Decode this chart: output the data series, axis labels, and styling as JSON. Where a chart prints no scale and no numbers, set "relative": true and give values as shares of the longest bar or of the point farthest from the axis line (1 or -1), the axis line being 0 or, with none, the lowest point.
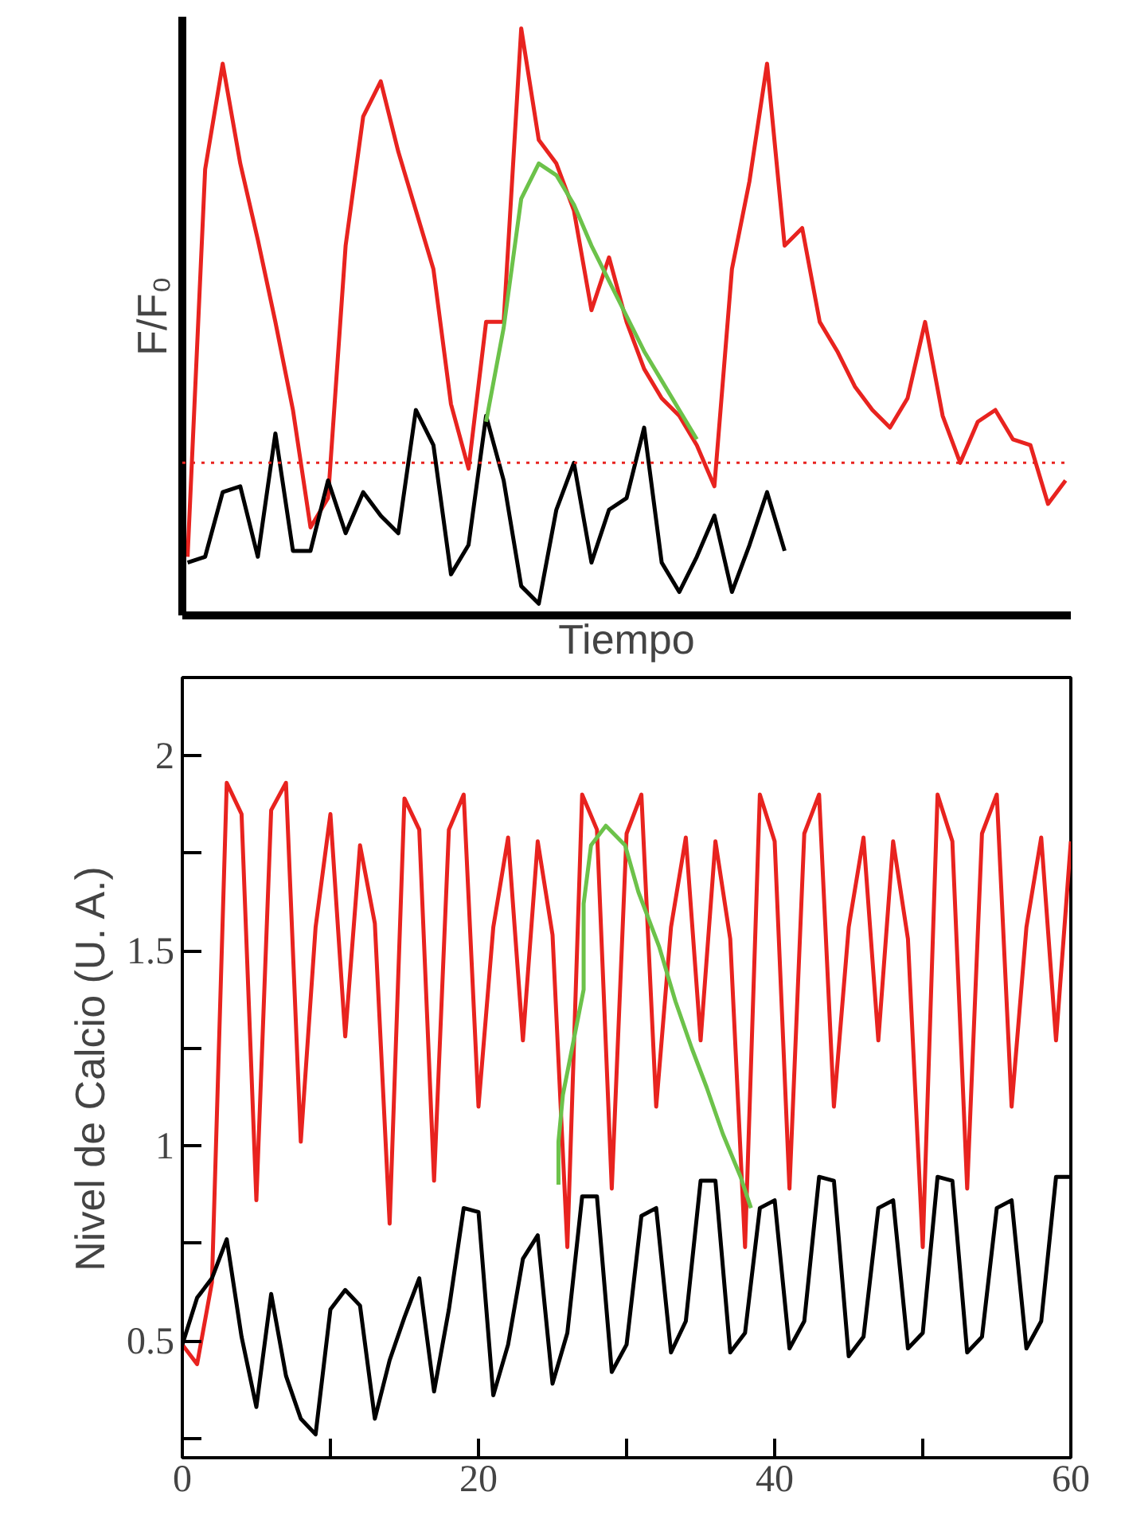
{
  "chart_data": [
    {
      "type": "line",
      "xlabel": "Tiempo",
      "ylabel": "F/F₀",
      "relative": true,
      "tick_labels": false,
      "categories": [
        null,
        null,
        null,
        null,
        null,
        null,
        null,
        null,
        null,
        null,
        null,
        null,
        null,
        null,
        null,
        null,
        null,
        null,
        null,
        null,
        null,
        null,
        null,
        null,
        null,
        null,
        null,
        null,
        null,
        null,
        null,
        null,
        null,
        null,
        null,
        null,
        null,
        null,
        null,
        null,
        null,
        null,
        null,
        null,
        null,
        null,
        null,
        null,
        null,
        null,
        null
      ],
      "series": [
        {
          "color": "#e8231f",
          "values": [
            0.1,
            0.76,
            0.94,
            0.77,
            0.64,
            0.5,
            0.35,
            0.15,
            0.2,
            0.63,
            0.85,
            0.91,
            0.79,
            0.69,
            0.59,
            0.36,
            0.25,
            0.5,
            0.5,
            1.0,
            0.81,
            0.77,
            0.69,
            0.52,
            0.61,
            0.5,
            0.42,
            0.37,
            0.34,
            0.29,
            0.22,
            0.59,
            0.74,
            0.94,
            0.63,
            0.66,
            0.5,
            0.45,
            0.39,
            0.35,
            0.32,
            0.37,
            0.5,
            0.34,
            0.26,
            0.33,
            0.35,
            0.3,
            0.29,
            0.19,
            0.23
          ]
        },
        {
          "color": "#000000",
          "values": [
            0.09,
            0.1,
            0.21,
            0.22,
            0.1,
            0.31,
            0.11,
            0.11,
            0.23,
            0.14,
            0.21,
            0.17,
            0.14,
            0.35,
            0.29,
            0.07,
            0.12,
            0.34,
            0.23,
            0.05,
            0.02,
            0.18,
            0.26,
            0.09,
            0.18,
            0.2,
            0.32,
            0.09,
            0.04,
            0.1,
            0.17,
            0.04,
            0.12,
            0.21,
            0.11,
            null,
            null,
            null,
            null,
            null,
            null,
            null,
            null,
            null,
            null,
            null,
            null,
            null,
            null,
            null,
            null
          ]
        },
        {
          "color": "#6cc24a",
          "values": [
            null,
            null,
            null,
            null,
            null,
            null,
            null,
            null,
            null,
            null,
            null,
            null,
            null,
            null,
            null,
            null,
            null,
            0.33,
            0.49,
            0.71,
            0.77,
            0.75,
            0.7,
            0.63,
            0.57,
            0.51,
            0.45,
            0.4,
            0.35,
            0.3,
            null,
            null,
            null,
            null,
            null,
            null,
            null,
            null,
            null,
            null,
            null,
            null,
            null,
            null,
            null,
            null,
            null,
            null,
            null,
            null,
            null
          ]
        }
      ],
      "ref_lines": [
        {
          "axis": "y",
          "value": 0.26,
          "color": "#e8231f",
          "line_style": "dotted"
        }
      ]
    },
    {
      "type": "line",
      "ylabel": "Nivel de Calcio (U. A.)",
      "xlim": [
        0,
        60
      ],
      "ylim": [
        0.2,
        2.2
      ],
      "xticks": [
        0,
        {
          "value": 10,
          "label": null
        },
        20,
        {
          "value": 30,
          "label": null
        },
        40,
        {
          "value": 50,
          "label": null
        },
        60
      ],
      "yticks": [
        {
          "value": 0.25,
          "label": null
        },
        0.5,
        {
          "value": 0.75,
          "label": null
        },
        1,
        {
          "value": 1.25,
          "label": null
        },
        1.5,
        {
          "value": 1.75,
          "label": null
        },
        2
      ],
      "series": [
        {
          "color": "#e8231f",
          "x": [
            0,
            1,
            2,
            3,
            4,
            5,
            6,
            7,
            8,
            9,
            10,
            11,
            12,
            13,
            14,
            15,
            16,
            17,
            18,
            19,
            20,
            21,
            22,
            23,
            24,
            25,
            26,
            27,
            28,
            29,
            30,
            31,
            32,
            33,
            34,
            35,
            36,
            37,
            38,
            39,
            40,
            41,
            42,
            43,
            44,
            45,
            46,
            47,
            48,
            49,
            50,
            51,
            52,
            53,
            54,
            55,
            56,
            57,
            58,
            59,
            60
          ],
          "values": [
            0.49,
            0.44,
            0.65,
            1.93,
            1.85,
            0.86,
            1.86,
            1.93,
            1.01,
            1.56,
            1.85,
            1.28,
            1.77,
            1.57,
            0.8,
            1.89,
            1.81,
            0.91,
            1.81,
            1.9,
            1.1,
            1.56,
            1.79,
            1.27,
            1.78,
            1.54,
            0.74,
            1.9,
            1.81,
            0.89,
            1.8,
            1.9,
            1.1,
            1.56,
            1.79,
            1.27,
            1.78,
            1.53,
            0.74,
            1.9,
            1.78,
            0.89,
            1.8,
            1.9,
            1.1,
            1.56,
            1.79,
            1.27,
            1.78,
            1.53,
            0.74,
            1.9,
            1.78,
            0.89,
            1.8,
            1.9,
            1.1,
            1.56,
            1.79,
            1.27,
            1.78
          ]
        },
        {
          "color": "#000000",
          "x": [
            0,
            1,
            2,
            3,
            4,
            5,
            6,
            7,
            8,
            9,
            10,
            11,
            12,
            13,
            14,
            15,
            16,
            17,
            18,
            19,
            20,
            21,
            22,
            23,
            24,
            25,
            26,
            27,
            28,
            29,
            30,
            31,
            32,
            33,
            34,
            35,
            36,
            37,
            38,
            39,
            40,
            41,
            42,
            43,
            44,
            45,
            46,
            47,
            48,
            49,
            50,
            51,
            52,
            53,
            54,
            55,
            56,
            57,
            58,
            59,
            60
          ],
          "values": [
            0.49,
            0.61,
            0.66,
            0.76,
            0.51,
            0.33,
            0.62,
            0.41,
            0.3,
            0.26,
            0.58,
            0.63,
            0.59,
            0.3,
            0.45,
            0.56,
            0.66,
            0.37,
            0.58,
            0.84,
            0.83,
            0.36,
            0.49,
            0.71,
            0.77,
            0.39,
            0.52,
            0.87,
            0.87,
            0.42,
            0.49,
            0.82,
            0.84,
            0.47,
            0.55,
            0.91,
            0.91,
            0.47,
            0.52,
            0.84,
            0.86,
            0.48,
            0.55,
            0.92,
            0.91,
            0.46,
            0.51,
            0.84,
            0.86,
            0.48,
            0.52,
            0.92,
            0.91,
            0.47,
            0.51,
            0.84,
            0.86,
            0.48,
            0.55,
            0.92,
            0.92
          ]
        },
        {
          "color": "#6cc24a",
          "x": [
            25.4,
            25.4,
            25.7,
            27.1,
            27.1,
            27.6,
            28.6,
            29.9,
            30.8,
            32.2,
            33.3,
            34.4,
            35.4,
            36.5,
            37.7,
            38.4
          ],
          "values": [
            0.9,
            1.01,
            1.13,
            1.4,
            1.62,
            1.77,
            1.82,
            1.77,
            1.65,
            1.51,
            1.37,
            1.25,
            1.15,
            1.03,
            0.92,
            0.84
          ]
        }
      ]
    }
  ]
}
